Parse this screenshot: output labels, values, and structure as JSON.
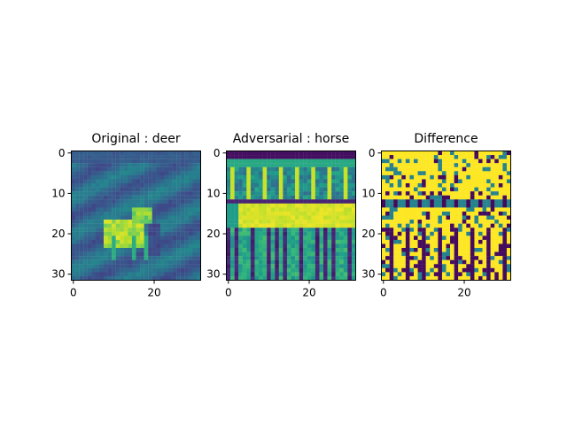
{
  "chart_data": [
    {
      "type": "heatmap",
      "title": "Original : deer",
      "xticks": [
        0,
        20
      ],
      "yticks": [
        0,
        10,
        20,
        30
      ],
      "grid": false,
      "colormap": "viridis",
      "image_size": [
        32,
        32
      ],
      "visible_content": "blurred low-contrast deer silhouette, bright body near rows 15-24 and columns 10-20 on a blue-green background"
    },
    {
      "type": "heatmap",
      "title": "Adversarial : horse",
      "xticks": [
        0,
        20
      ],
      "yticks": [
        0,
        10,
        20,
        30
      ],
      "grid": false,
      "colormap": "viridis",
      "image_size": [
        32,
        32
      ],
      "visible_content": "horse-like vertical stripe pattern with a bright body band near rows 13-19 and dark stripes below"
    },
    {
      "type": "heatmap",
      "title": "Difference",
      "xticks": [
        0,
        20
      ],
      "yticks": [
        0,
        10,
        20,
        30
      ],
      "grid": false,
      "colormap": "viridis",
      "image_size": [
        32,
        32
      ],
      "visible_content": "high-contrast mostly yellow noise with purple and teal blocks and stripes"
    }
  ]
}
